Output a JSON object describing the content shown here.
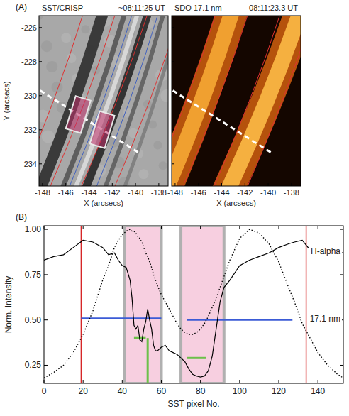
{
  "chart_data": [
    {
      "type": "image",
      "panel": "(A)",
      "title": "SST/CRISP",
      "subtitle": "~08:11:25 UT",
      "x_label": "X (arcsecs)",
      "y_label": "Y (arcsecs)",
      "xlim": [
        -148.3,
        -137.2
      ],
      "ylim": [
        -235.3,
        -225.3
      ],
      "xticks": [
        -148,
        -146,
        -144,
        -142,
        -140,
        -138
      ],
      "yticks": [
        -234,
        -232,
        -230,
        -228,
        -226
      ],
      "color": "gray",
      "slit": {
        "x": [
          -148.2,
          -139.6
        ],
        "y": [
          -229.7,
          -233.4
        ]
      }
    },
    {
      "type": "image",
      "title": "SDO 17.1 nm",
      "subtitle": "08:11:23.3 UT",
      "x_label": "X (arcsecs)",
      "xlim": [
        -148.3,
        -137.2
      ],
      "ylim": [
        -235.3,
        -225.3
      ],
      "xticks": [
        -148,
        -146,
        -144,
        -142,
        -140,
        -138
      ],
      "yticks": [
        -234,
        -232,
        -230,
        -228,
        -226
      ],
      "tick_labels": "x",
      "color": "orange",
      "slit": {
        "x": [
          -148.2,
          -139.6
        ],
        "y": [
          -229.7,
          -233.4
        ]
      }
    },
    {
      "type": "line",
      "panel": "(B)",
      "x_label": "SST pixel No.",
      "y_label": "Norm. Intensity",
      "xlim": [
        0,
        153
      ],
      "ylim": [
        0.15,
        1.02
      ],
      "xticks": [
        0,
        20,
        40,
        60,
        80,
        100,
        120,
        140
      ],
      "yticks": [
        {
          "value": 0.25,
          "label": "0.25"
        },
        {
          "value": 0.5,
          "label": "0.50"
        },
        {
          "value": 0.75,
          "label": "0.75"
        },
        {
          "value": 1,
          "label": "1.00"
        }
      ],
      "x": [
        0,
        5,
        10,
        15,
        20,
        25,
        30,
        33,
        36,
        38,
        40,
        42,
        44,
        45,
        46,
        47,
        48,
        49,
        50,
        51,
        52,
        53,
        54,
        55,
        56,
        57,
        58,
        60,
        62,
        64,
        66,
        68,
        70,
        72,
        74,
        76,
        78,
        80,
        82,
        84,
        86,
        88,
        90,
        92,
        95,
        100,
        105,
        110,
        115,
        120,
        125,
        128,
        132,
        135,
        140,
        145,
        150,
        153
      ],
      "series": [
        {
          "name": "H-alpha",
          "color": "#000000",
          "line_style": "solid",
          "values": [
            0.83,
            0.85,
            0.86,
            0.9,
            0.94,
            0.93,
            0.9,
            0.86,
            0.87,
            0.83,
            0.8,
            0.79,
            0.72,
            0.62,
            0.47,
            0.45,
            0.47,
            0.39,
            0.38,
            0.45,
            0.49,
            0.56,
            0.5,
            0.45,
            0.36,
            0.33,
            0.33,
            0.35,
            0.36,
            0.33,
            0.32,
            0.31,
            0.29,
            0.27,
            0.23,
            0.2,
            0.19,
            0.185,
            0.19,
            0.22,
            0.3,
            0.45,
            0.6,
            0.68,
            0.72,
            0.8,
            0.83,
            0.85,
            0.87,
            0.9,
            0.92,
            0.93,
            0.94,
            0.9,
            0.88,
            0.87,
            0.88,
            0.87
          ]
        },
        {
          "name": "17.1 nm",
          "color": "#000000",
          "line_style": "dotted",
          "values": [
            0.18,
            0.21,
            0.25,
            0.32,
            0.42,
            0.55,
            0.72,
            0.8,
            0.9,
            0.94,
            0.97,
            0.99,
            1.0,
            0.99,
            0.99,
            0.98,
            0.96,
            0.95,
            0.93,
            0.9,
            0.87,
            0.85,
            0.82,
            0.79,
            0.75,
            0.72,
            0.69,
            0.64,
            0.6,
            0.56,
            0.52,
            0.48,
            0.45,
            0.43,
            0.42,
            0.42,
            0.43,
            0.45,
            0.48,
            0.52,
            0.57,
            0.62,
            0.68,
            0.74,
            0.83,
            0.95,
            1.0,
            0.98,
            0.92,
            0.82,
            0.68,
            0.6,
            0.48,
            0.42,
            0.32,
            0.25,
            0.2,
            0.18
          ]
        }
      ],
      "vertical_lines": {
        "x": [
          19,
          134
        ],
        "color": "#d62728"
      },
      "shaded": [
        {
          "x": [
            41,
            60
          ]
        },
        {
          "x": [
            70,
            92
          ]
        }
      ],
      "levels": {
        "color": "#3b5bd6",
        "lines": [
          {
            "x": [
              19,
              60
            ],
            "y": 0.51
          },
          {
            "x": [
              73,
              127
            ],
            "y": 0.5
          }
        ]
      },
      "widths": {
        "color": "#6cc04a",
        "lines": [
          {
            "x": [
              46,
              52
            ],
            "y": 0.4
          },
          {
            "x": [
              73,
              83
            ],
            "y": 0.29
          }
        ],
        "marker": {
          "x": 53,
          "y": [
            0.15,
            0.4
          ]
        }
      }
    }
  ]
}
